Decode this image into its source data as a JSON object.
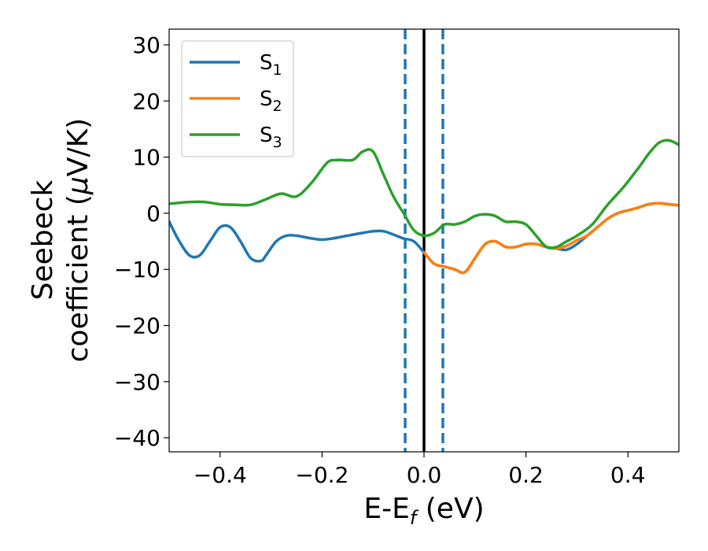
{
  "chart_data": {
    "type": "line",
    "xlabel": {
      "main": "E-E",
      "sub": "f",
      "tail": " (eV)"
    },
    "ylabel": {
      "line1": "Seebeck",
      "line2_prefix": "coefficient  (",
      "line2_mu": "μ",
      "line2_suffix": "V/K)"
    },
    "xlim": [
      -0.5,
      0.5
    ],
    "ylim": [
      -42.5,
      32.8
    ],
    "xticks": [
      -0.4,
      -0.2,
      0.0,
      0.2,
      0.4
    ],
    "xtick_labels": [
      "−0.4",
      "−0.2",
      "0.0",
      "0.2",
      "0.4"
    ],
    "yticks": [
      30,
      20,
      10,
      0,
      -10,
      -20,
      -30,
      -40
    ],
    "ytick_labels": [
      "30",
      "20",
      "10",
      "0",
      "−10",
      "−20",
      "−30",
      "−40"
    ],
    "grid": false,
    "legend_placement": "top-left",
    "vlines": [
      {
        "x": -0.037,
        "style": "dashed",
        "color": "#1f77b4"
      },
      {
        "x": 0.0,
        "style": "solid",
        "color": "#000000"
      },
      {
        "x": 0.037,
        "style": "dashed",
        "color": "#1f77b4"
      }
    ],
    "series": [
      {
        "name": "S",
        "sub": "1",
        "color": "#1f77b4",
        "x": [
          -0.5,
          -0.48,
          -0.46,
          -0.44,
          -0.42,
          -0.4,
          -0.38,
          -0.36,
          -0.34,
          -0.32,
          -0.31,
          -0.29,
          -0.27,
          -0.25,
          -0.22,
          -0.2,
          -0.18,
          -0.15,
          -0.12,
          -0.1,
          -0.08,
          -0.06,
          -0.04,
          -0.02,
          0.0,
          0.02,
          0.04,
          0.06,
          0.08,
          0.1,
          0.12,
          0.14,
          0.16,
          0.18,
          0.2,
          0.22,
          0.24,
          0.26,
          0.28,
          0.3,
          0.32,
          0.34,
          0.36,
          0.38,
          0.4,
          0.42,
          0.44,
          0.46,
          0.48,
          0.5
        ],
        "y": [
          -1.5,
          -5,
          -7.5,
          -7.5,
          -5,
          -2.5,
          -2.5,
          -5,
          -8,
          -8.5,
          -7.5,
          -5,
          -4,
          -4,
          -4.5,
          -4.7,
          -4.5,
          -4,
          -3.5,
          -3.2,
          -3.2,
          -3.8,
          -4.5,
          -5,
          -7,
          -9,
          -9.5,
          -10,
          -10.5,
          -8,
          -5.5,
          -5,
          -6,
          -6,
          -5.5,
          -5.5,
          -6,
          -6.3,
          -6.5,
          -5.5,
          -4,
          -2.5,
          -1,
          0,
          0.5,
          1,
          1.6,
          1.8,
          1.6,
          1.4
        ]
      },
      {
        "name": "S",
        "sub": "2",
        "color": "#ff7f0e",
        "x": [
          0.0,
          0.02,
          0.04,
          0.06,
          0.08,
          0.1,
          0.12,
          0.14,
          0.16,
          0.18,
          0.2,
          0.22,
          0.24,
          0.26,
          0.28,
          0.3,
          0.32,
          0.34,
          0.36,
          0.38,
          0.4,
          0.42,
          0.44,
          0.46,
          0.48,
          0.5
        ],
        "y": [
          -7,
          -9,
          -9.5,
          -10,
          -10.5,
          -8,
          -5.5,
          -5,
          -6,
          -6,
          -5.5,
          -5.5,
          -6,
          -6.3,
          -5.8,
          -4.8,
          -4,
          -2.5,
          -1,
          0,
          0.5,
          1,
          1.6,
          1.8,
          1.6,
          1.4
        ]
      },
      {
        "name": "S",
        "sub": "3",
        "color": "#2ca02c",
        "x": [
          -0.5,
          -0.46,
          -0.43,
          -0.4,
          -0.37,
          -0.34,
          -0.31,
          -0.28,
          -0.25,
          -0.22,
          -0.19,
          -0.17,
          -0.14,
          -0.12,
          -0.1,
          -0.08,
          -0.06,
          -0.04,
          -0.02,
          0.0,
          0.02,
          0.04,
          0.06,
          0.08,
          0.1,
          0.12,
          0.14,
          0.16,
          0.18,
          0.2,
          0.22,
          0.24,
          0.26,
          0.28,
          0.3,
          0.33,
          0.36,
          0.39,
          0.42,
          0.44,
          0.46,
          0.48,
          0.5
        ],
        "y": [
          1.7,
          2,
          2,
          1.6,
          1.5,
          1.5,
          2.5,
          3.5,
          3,
          5.5,
          9,
          9.5,
          9.5,
          11,
          11,
          7,
          3,
          0,
          -3,
          -4,
          -3.5,
          -2,
          -2,
          -1.5,
          -0.5,
          -0.2,
          -0.5,
          -1.5,
          -1.5,
          -2,
          -4,
          -6,
          -6,
          -5,
          -4,
          -2,
          1.5,
          4.5,
          8,
          10.5,
          12.5,
          13,
          12.2
        ]
      }
    ]
  }
}
